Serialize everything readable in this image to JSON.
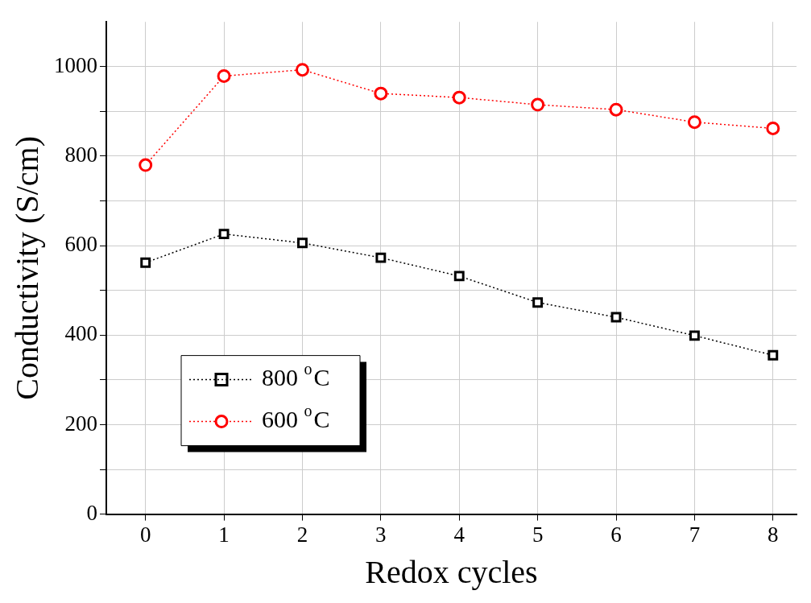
{
  "chart_data": {
    "type": "line",
    "xlabel": "Redox cycles",
    "ylabel": "Conductivity (S/cm)",
    "x": [
      0,
      1,
      2,
      3,
      4,
      5,
      6,
      7,
      8
    ],
    "series": [
      {
        "name": "800 $^{o}$C",
        "color": "#000000",
        "marker": "square",
        "values": [
          562,
          626,
          606,
          573,
          532,
          473,
          440,
          399,
          355
        ]
      },
      {
        "name": "600 $^{o}$C",
        "color": "#ff0000",
        "marker": "circle",
        "values": [
          780,
          979,
          993,
          940,
          931,
          915,
          904,
          876,
          862
        ]
      }
    ],
    "xlim": [
      -0.5,
      8.3
    ],
    "xticks": [
      0,
      1,
      2,
      3,
      4,
      5,
      6,
      7,
      8
    ],
    "ylim": [
      0,
      1100
    ],
    "yticks": [
      0,
      {
        "value": 100,
        "label": null
      },
      200,
      {
        "value": 300,
        "label": null
      },
      400,
      {
        "value": 500,
        "label": null
      },
      600,
      {
        "value": 700,
        "label": null
      },
      800,
      {
        "value": 900,
        "label": null
      },
      1000
    ],
    "grid": true,
    "legend": "bottom left",
    "line_style": "dotted"
  }
}
